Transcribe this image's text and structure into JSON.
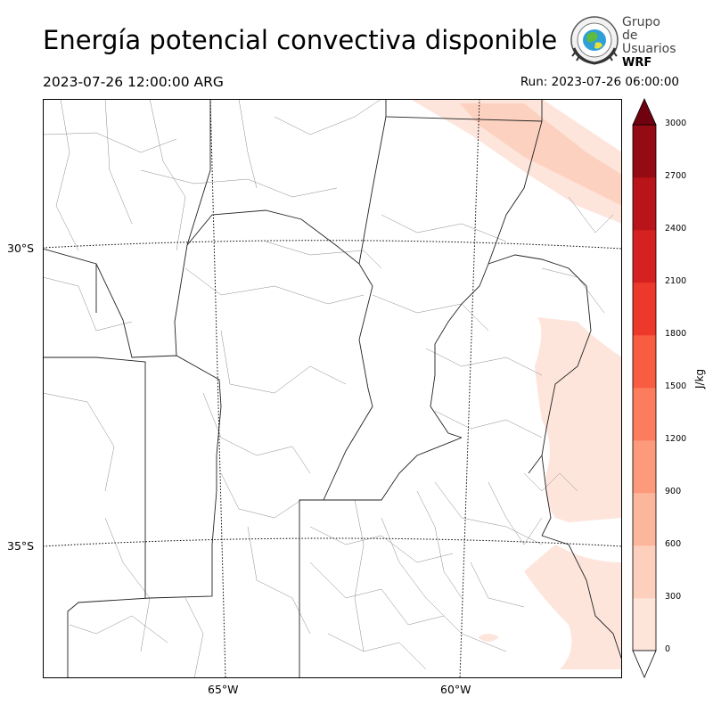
{
  "header": {
    "title": "Energía potencial convectiva disponible",
    "valid_time": "2023-07-26 12:00:00 ARG",
    "run_time": "Run: 2023-07-26 06:00:00"
  },
  "logo": {
    "line1": "Grupo de",
    "line2": "Usuarios",
    "line3": "WRF"
  },
  "map": {
    "lat_labels": [
      "30°S",
      "35°S"
    ],
    "lon_labels": [
      "65°W",
      "60°W"
    ],
    "colors": {
      "province_border": "#222222",
      "department_border": "#8a8a8a",
      "graticule": "#000000",
      "cape_fill_low": "#fde5dc",
      "cape_fill_300": "#fcd1bf"
    }
  },
  "colorbar": {
    "unit": "J/kg",
    "ticks": [
      "0",
      "300",
      "600",
      "900",
      "1200",
      "1500",
      "1800",
      "2100",
      "2400",
      "2700",
      "3000"
    ],
    "colors": [
      "#fee5d9",
      "#fdd0bd",
      "#fcb69c",
      "#fc9a7b",
      "#fb7d5d",
      "#f85d42",
      "#ed392b",
      "#d52221",
      "#b81419",
      "#950b13",
      "#6f020e"
    ]
  }
}
